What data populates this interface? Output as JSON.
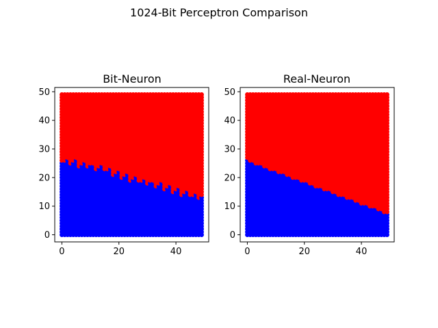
{
  "figure": {
    "title": "1024-Bit Perceptron Comparison"
  },
  "chart_data": [
    {
      "type": "scatter",
      "title": "Bit-Neuron",
      "xlabel": "",
      "ylabel": "",
      "xlim": [
        -2.5,
        51.5
      ],
      "ylim": [
        -2.5,
        51.5
      ],
      "xticks": [
        0,
        20,
        40
      ],
      "yticks": [
        0,
        10,
        20,
        30,
        40,
        50
      ],
      "grid": false,
      "points": "50x50 grid of integer points x,y in [0,49]; each point colored by class",
      "series": [
        {
          "color": "#ff0000",
          "region": "above boundary"
        },
        {
          "color": "#0000ff",
          "region": "at or below boundary"
        }
      ],
      "boundary": {
        "x": [
          0,
          5,
          10,
          15,
          20,
          25,
          30,
          35,
          40,
          45,
          49
        ],
        "y": [
          26,
          25,
          24,
          23,
          21,
          19.5,
          18.5,
          17,
          15.5,
          14,
          13
        ]
      }
    },
    {
      "type": "scatter",
      "title": "Real-Neuron",
      "xlabel": "",
      "ylabel": "",
      "xlim": [
        -2.5,
        51.5
      ],
      "ylim": [
        -2.5,
        51.5
      ],
      "xticks": [
        0,
        20,
        40
      ],
      "yticks": [
        0,
        10,
        20,
        30,
        40,
        50
      ],
      "grid": false,
      "points": "50x50 grid of integer points x,y in [0,49]; each point colored by class",
      "series": [
        {
          "color": "#ff0000",
          "region": "above boundary"
        },
        {
          "color": "#0000ff",
          "region": "at or below boundary"
        }
      ],
      "boundary": {
        "x": [
          0,
          49
        ],
        "y": [
          26,
          7.5
        ]
      }
    }
  ]
}
